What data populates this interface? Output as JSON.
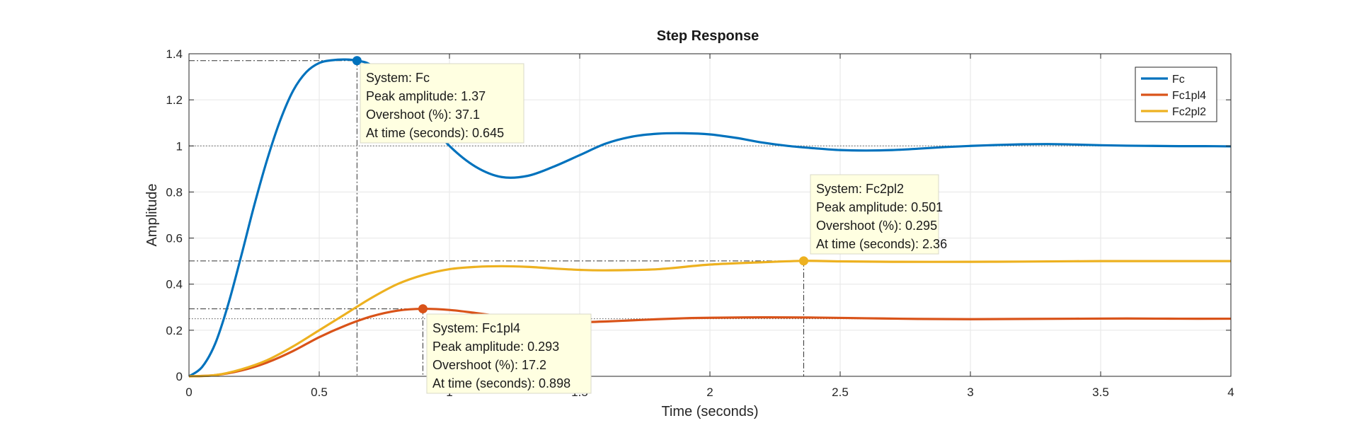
{
  "chart_data": {
    "type": "line",
    "title": "Step Response",
    "xlabel": "Time (seconds)",
    "ylabel": "Amplitude",
    "xlim": [
      0,
      4
    ],
    "ylim": [
      0,
      1.4
    ],
    "xticks": [
      0,
      0.5,
      1,
      1.5,
      2,
      2.5,
      3,
      3.5,
      4
    ],
    "yticks": [
      0,
      0.2,
      0.4,
      0.6,
      0.8,
      1,
      1.2,
      1.4
    ],
    "xtick_labels": [
      "0",
      "0.5",
      "1",
      "1.5",
      "2",
      "2.5",
      "3",
      "3.5",
      "4"
    ],
    "ytick_labels": [
      "0",
      "0.2",
      "0.4",
      "0.6",
      "0.8",
      "1",
      "1.2",
      "1.4"
    ],
    "grid": true,
    "legend_position": "top-right",
    "reference_lines": [
      {
        "y": 1
      },
      {
        "y": 0.25
      }
    ],
    "series": [
      {
        "name": "Fc",
        "color": "#0072BD",
        "x": [
          0,
          0.05,
          0.1,
          0.15,
          0.2,
          0.25,
          0.3,
          0.35,
          0.4,
          0.45,
          0.5,
          0.55,
          0.6,
          0.645,
          0.7,
          0.8,
          0.9,
          1.0,
          1.1,
          1.2,
          1.3,
          1.4,
          1.5,
          1.6,
          1.7,
          1.8,
          1.9,
          2.0,
          2.1,
          2.2,
          2.3,
          2.4,
          2.5,
          2.6,
          2.7,
          2.8,
          2.9,
          3.0,
          3.1,
          3.2,
          3.3,
          3.4,
          3.5,
          3.6,
          3.7,
          3.8,
          3.9,
          4.0
        ],
        "y": [
          0,
          0.04,
          0.14,
          0.31,
          0.52,
          0.74,
          0.94,
          1.11,
          1.24,
          1.32,
          1.36,
          1.372,
          1.375,
          1.37,
          1.35,
          1.26,
          1.13,
          1.0,
          0.91,
          0.865,
          0.87,
          0.91,
          0.96,
          1.01,
          1.04,
          1.053,
          1.055,
          1.05,
          1.035,
          1.015,
          1.0,
          0.99,
          0.982,
          0.98,
          0.982,
          0.988,
          0.995,
          1.0,
          1.004,
          1.007,
          1.008,
          1.006,
          1.003,
          1.001,
          1.0,
          0.999,
          0.999,
          0.998
        ]
      },
      {
        "name": "Fc1pl4",
        "color": "#D95319",
        "x": [
          0,
          0.1,
          0.2,
          0.3,
          0.4,
          0.5,
          0.6,
          0.7,
          0.8,
          0.898,
          1.0,
          1.1,
          1.2,
          1.3,
          1.4,
          1.5,
          1.6,
          1.7,
          1.8,
          1.9,
          2.0,
          2.2,
          2.4,
          2.6,
          2.8,
          3.0,
          3.2,
          3.4,
          3.6,
          3.8,
          4.0
        ],
        "y": [
          0,
          0.005,
          0.025,
          0.06,
          0.11,
          0.17,
          0.22,
          0.26,
          0.285,
          0.293,
          0.288,
          0.275,
          0.26,
          0.245,
          0.237,
          0.235,
          0.238,
          0.243,
          0.248,
          0.252,
          0.254,
          0.256,
          0.255,
          0.252,
          0.249,
          0.248,
          0.249,
          0.25,
          0.251,
          0.25,
          0.25
        ]
      },
      {
        "name": "Fc2pl2",
        "color": "#EDB120",
        "x": [
          0,
          0.1,
          0.2,
          0.3,
          0.4,
          0.5,
          0.6,
          0.7,
          0.8,
          0.9,
          1.0,
          1.1,
          1.2,
          1.3,
          1.4,
          1.5,
          1.6,
          1.8,
          2.0,
          2.2,
          2.36,
          2.5,
          2.7,
          3.0,
          3.2,
          3.5,
          3.8,
          4.0
        ],
        "y": [
          0,
          0.005,
          0.03,
          0.07,
          0.13,
          0.2,
          0.27,
          0.34,
          0.4,
          0.44,
          0.465,
          0.475,
          0.478,
          0.475,
          0.468,
          0.462,
          0.46,
          0.465,
          0.485,
          0.495,
          0.501,
          0.499,
          0.497,
          0.497,
          0.498,
          0.5,
          0.5,
          0.5
        ]
      }
    ],
    "datatips": [
      {
        "series": "Fc",
        "x": 0.645,
        "y": 1.37,
        "lines": [
          "System: Fc",
          "Peak amplitude: 1.37",
          "Overshoot (%): 37.1",
          "At time (seconds): 0.645"
        ]
      },
      {
        "series": "Fc2pl2",
        "x": 2.36,
        "y": 0.501,
        "lines": [
          "System: Fc2pl2",
          "Peak amplitude: 0.501",
          "Overshoot (%): 0.295",
          "At time (seconds): 2.36"
        ]
      },
      {
        "series": "Fc1pl4",
        "x": 0.898,
        "y": 0.293,
        "lines": [
          "System: Fc1pl4",
          "Peak amplitude: 0.293",
          "Overshoot (%): 17.2",
          "At time (seconds): 0.898"
        ]
      }
    ]
  }
}
